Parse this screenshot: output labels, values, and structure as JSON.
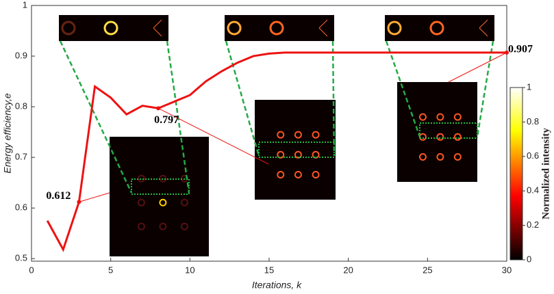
{
  "chart_data": {
    "type": "line",
    "x_label": "Iterations, k",
    "y_label": "Energy efficiency,e",
    "x": [
      1,
      2,
      3,
      4,
      5,
      6,
      7,
      8,
      9,
      10,
      11,
      12,
      13,
      14,
      15,
      16,
      17,
      18,
      19,
      20,
      21,
      22,
      23,
      24,
      25,
      26,
      27,
      28,
      29,
      30
    ],
    "series": [
      {
        "name": "Energy efficiency",
        "color": "#ee1111",
        "values": [
          0.575,
          0.518,
          0.612,
          0.84,
          0.818,
          0.785,
          0.802,
          0.797,
          0.81,
          0.823,
          0.85,
          0.87,
          0.887,
          0.9,
          0.905,
          0.907,
          0.907,
          0.907,
          0.907,
          0.907,
          0.907,
          0.907,
          0.907,
          0.907,
          0.907,
          0.907,
          0.907,
          0.907,
          0.907,
          0.907
        ]
      }
    ],
    "annotations": [
      {
        "index": 2,
        "text": "0.612"
      },
      {
        "index": 7,
        "text": "0.797"
      },
      {
        "index": 29,
        "text": "0.907"
      }
    ],
    "xlim": [
      0,
      30
    ],
    "xticks": [
      0,
      5,
      10,
      15,
      20,
      25,
      30
    ],
    "ylim": [
      0.495,
      1
    ],
    "yticks": [
      0.5,
      0.6,
      0.7,
      0.8,
      0.9,
      1
    ],
    "colorbar": {
      "label": "Normalized intensity",
      "lim": [
        0,
        1
      ],
      "ticks": [
        0,
        0.2,
        0.4,
        0.6,
        0.8,
        1
      ]
    }
  }
}
